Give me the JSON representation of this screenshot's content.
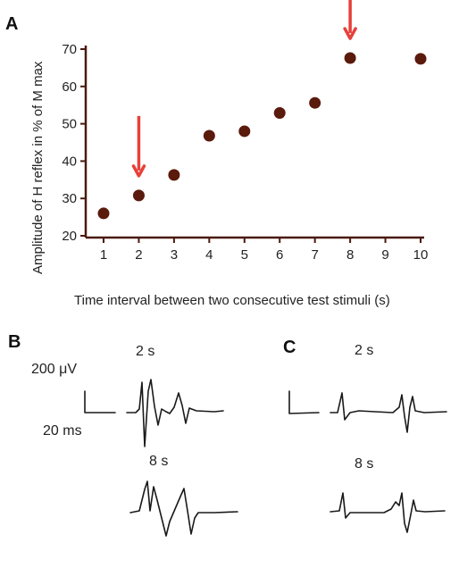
{
  "panels": {
    "a": "A",
    "b": "B",
    "c": "C"
  },
  "chart_data": {
    "type": "scatter",
    "xlabel": "Time interval between two consecutive test stimuli (s)",
    "ylabel": "Amplitude of H reflex in % of M max",
    "xlim": [
      1,
      10
    ],
    "ylim": [
      20,
      70
    ],
    "xticks": [
      "1",
      "2",
      "3",
      "4",
      "5",
      "6",
      "7",
      "8",
      "9",
      "10"
    ],
    "yticks": [
      "20",
      "30",
      "40",
      "50",
      "60",
      "70"
    ],
    "x": [
      1,
      2,
      3,
      4,
      5,
      6,
      7,
      8,
      10
    ],
    "y": [
      26,
      30.8,
      36.3,
      46.8,
      48,
      52.9,
      55.6,
      67.6,
      67.4
    ],
    "arrows_at_x": [
      2,
      8
    ],
    "colors": {
      "points": "#5a1a0c",
      "axes": "#4a1a0e",
      "arrows": "#e8403a"
    },
    "grid": false
  },
  "traces": {
    "scale_amplitude": "200 μV",
    "scale_time": "20 ms",
    "b_top_label": "2 s",
    "b_bottom_label": "8 s",
    "c_top_label": "2 s",
    "c_bottom_label": "8 s"
  }
}
